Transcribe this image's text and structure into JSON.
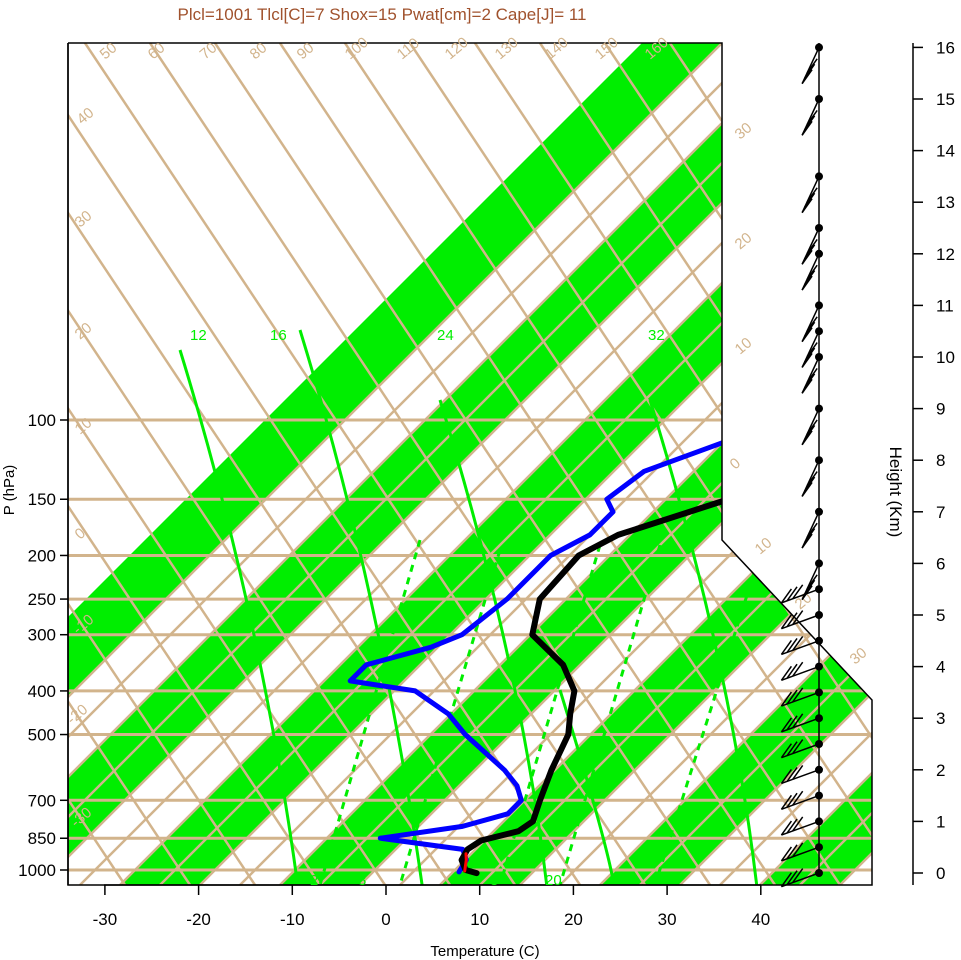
{
  "title": "Plcl=1001 Tlcl[C]=7 Shox=15 Pwat[cm]=2 Cape[J]= 11",
  "colors": {
    "title": "#a0522d",
    "band": "#00ee00",
    "isoline": "#d2b48c",
    "mixing": "#00ee00",
    "temperature": "#000000",
    "dewpoint": "#0000ff",
    "parcel": "#ff0000",
    "wind": "#000000"
  },
  "chart_data": {
    "type": "skew-t",
    "xlabel": "Temperature (C)",
    "ylabel": "P (hPa)",
    "height_label": "Height (Km)",
    "x_ticks": [
      "-30",
      "-20",
      "-10",
      "0",
      "10",
      "20",
      "30",
      "40"
    ],
    "p_ticks": [
      "100",
      "150",
      "200",
      "250",
      "300",
      "400",
      "500",
      "700",
      "850",
      "1000"
    ],
    "height_ticks": [
      "16",
      "15",
      "14",
      "13",
      "12",
      "11",
      "10",
      "9",
      "8",
      "7",
      "6",
      "5",
      "4",
      "3",
      "2",
      "1",
      "0"
    ],
    "xlim": [
      -34,
      50
    ],
    "plim": [
      1050,
      100
    ],
    "temperature_profile": [
      {
        "p": 1016,
        "t": 10.0
      },
      {
        "p": 1000,
        "t": 8.5
      },
      {
        "p": 950,
        "t": 7.0
      },
      {
        "p": 900,
        "t": 6.5
      },
      {
        "p": 860,
        "t": 7.0
      },
      {
        "p": 820,
        "t": 10.0
      },
      {
        "p": 780,
        "t": 10.5
      },
      {
        "p": 700,
        "t": 9.0
      },
      {
        "p": 600,
        "t": 7.0
      },
      {
        "p": 500,
        "t": 5.0
      },
      {
        "p": 450,
        "t": 3.0
      },
      {
        "p": 400,
        "t": 1.0
      },
      {
        "p": 350,
        "t": -3.0
      },
      {
        "p": 300,
        "t": -9.5
      },
      {
        "p": 250,
        "t": -12.5
      },
      {
        "p": 200,
        "t": -13.0
      },
      {
        "p": 180,
        "t": -11.0
      },
      {
        "p": 150,
        "t": -3.0
      },
      {
        "p": 130,
        "t": 4.0
      },
      {
        "p": 115,
        "t": 8.0
      },
      {
        "p": 100,
        "t": 12.5
      }
    ],
    "dewpoint_profile": [
      {
        "p": 1010,
        "t": 8.0
      },
      {
        "p": 950,
        "t": 7.5
      },
      {
        "p": 900,
        "t": 6.0
      },
      {
        "p": 850,
        "t": -4.0
      },
      {
        "p": 800,
        "t": 3.5
      },
      {
        "p": 750,
        "t": 7.0
      },
      {
        "p": 700,
        "t": 7.0
      },
      {
        "p": 650,
        "t": 5.0
      },
      {
        "p": 600,
        "t": 2.0
      },
      {
        "p": 500,
        "t": -6.0
      },
      {
        "p": 450,
        "t": -10.0
      },
      {
        "p": 400,
        "t": -16.0
      },
      {
        "p": 380,
        "t": -24.0
      },
      {
        "p": 350,
        "t": -24.0
      },
      {
        "p": 320,
        "t": -19.0
      },
      {
        "p": 300,
        "t": -17.0
      },
      {
        "p": 250,
        "t": -16.0
      },
      {
        "p": 200,
        "t": -16.0
      },
      {
        "p": 180,
        "t": -14.0
      },
      {
        "p": 160,
        "t": -14.0
      },
      {
        "p": 150,
        "t": -16.0
      },
      {
        "p": 130,
        "t": -15.0
      },
      {
        "p": 100,
        "t": -5.5
      }
    ],
    "parcel_profile": [
      {
        "p": 1005,
        "t": 8.5
      },
      {
        "p": 950,
        "t": 7.5
      },
      {
        "p": 920,
        "t": 6.8
      }
    ],
    "dry_adiabat_labels": [
      "50",
      "60",
      "70",
      "80",
      "90",
      "100",
      "110",
      "120",
      "130",
      "140",
      "150",
      "160",
      "40",
      "30",
      "30",
      "20",
      "20",
      "10",
      "10",
      "0",
      "0",
      "10",
      "-10",
      "20",
      "-20",
      "30",
      "-30"
    ],
    "mixing_ratio_labels": [
      "12",
      "16",
      "24",
      "32",
      "2",
      "3",
      "8",
      "20"
    ],
    "wind_barb_heights_km": [
      0,
      0.5,
      1,
      1.5,
      2,
      2.5,
      3,
      3.5,
      4,
      4.5,
      5,
      5.5,
      6,
      7,
      8,
      9,
      10,
      10.5,
      11,
      12,
      12.5,
      13.5,
      15,
      16
    ]
  }
}
